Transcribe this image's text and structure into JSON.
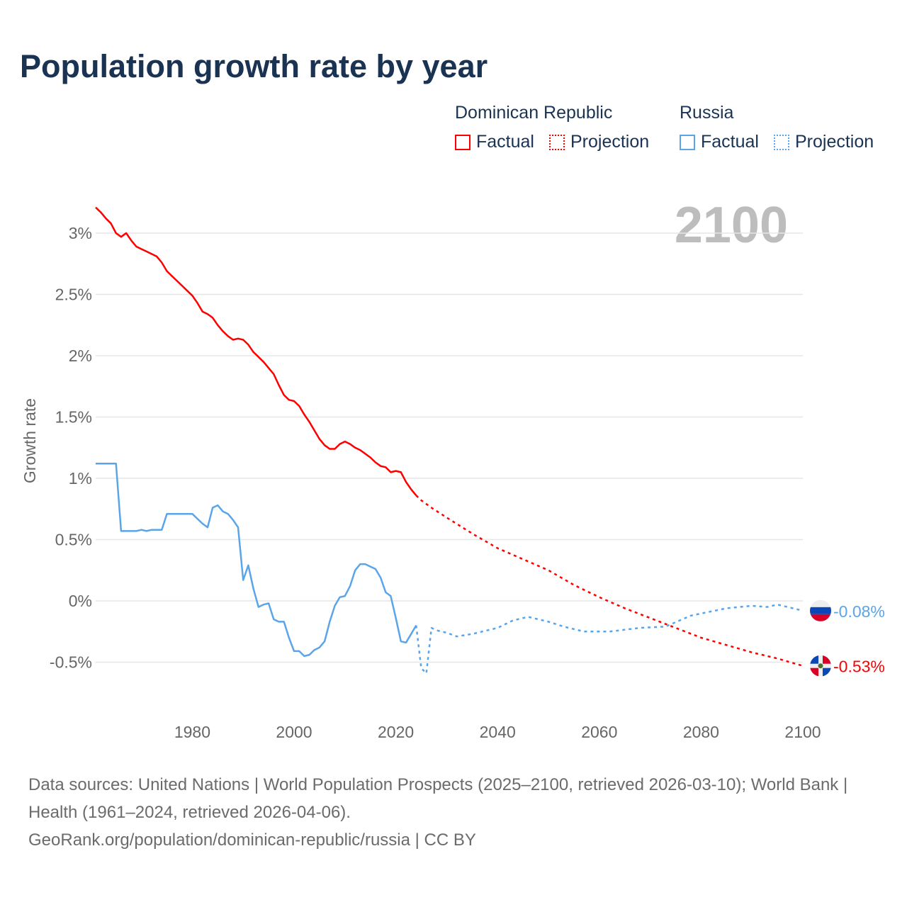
{
  "title": "Population growth rate by year",
  "legend": {
    "groups": [
      {
        "name": "Dominican Republic",
        "factual": "Factual",
        "projection": "Projection"
      },
      {
        "name": "Russia",
        "factual": "Factual",
        "projection": "Projection"
      }
    ]
  },
  "year_overlay": "2100",
  "footer": {
    "sources": "Data sources: United Nations | World Population Prospects (2025–2100, retrieved 2026-03-10); World Bank | Health (1961–2024, retrieved 2026-04-06).",
    "link": "GeoRank.org/population/dominican-republic/russia | CC BY"
  },
  "colors": {
    "dominican": "#ff0000",
    "russia": "#5aa5ea",
    "title": "#1a3353"
  },
  "chart_data": {
    "type": "line",
    "title": "Population growth rate by year",
    "xlabel": "",
    "ylabel": "Growth rate",
    "xlim": [
      1961,
      2100
    ],
    "ylim": [
      -0.75,
      3.25
    ],
    "x_ticks": [
      1980,
      2000,
      2020,
      2040,
      2060,
      2080,
      2100
    ],
    "x_tick_labels": [
      "1980",
      "2000",
      "2020",
      "2040",
      "2060",
      "2080",
      "2100"
    ],
    "y_ticks": [
      -0.5,
      0,
      0.5,
      1,
      1.5,
      2,
      2.5,
      3
    ],
    "y_tick_labels": [
      "-0.5%",
      "0%",
      "0.5%",
      "1%",
      "1.5%",
      "2%",
      "2.5%",
      "3%"
    ],
    "grid": true,
    "legend_position": "top-right",
    "series": [
      {
        "name": "Dominican Republic",
        "kind": "factual",
        "color": "#ff0000",
        "x": [
          1961,
          1962,
          1963,
          1964,
          1965,
          1966,
          1967,
          1968,
          1969,
          1970,
          1971,
          1972,
          1973,
          1974,
          1975,
          1976,
          1977,
          1978,
          1979,
          1980,
          1981,
          1982,
          1983,
          1984,
          1985,
          1986,
          1987,
          1988,
          1989,
          1990,
          1991,
          1992,
          1993,
          1994,
          1995,
          1996,
          1997,
          1998,
          1999,
          2000,
          2001,
          2002,
          2003,
          2004,
          2005,
          2006,
          2007,
          2008,
          2009,
          2010,
          2011,
          2012,
          2013,
          2014,
          2015,
          2016,
          2017,
          2018,
          2019,
          2020,
          2021,
          2022,
          2023,
          2024
        ],
        "values": [
          3.21,
          3.17,
          3.12,
          3.08,
          3.0,
          2.97,
          3.0,
          2.94,
          2.89,
          2.87,
          2.85,
          2.83,
          2.81,
          2.76,
          2.69,
          2.65,
          2.61,
          2.57,
          2.53,
          2.49,
          2.43,
          2.36,
          2.34,
          2.31,
          2.25,
          2.2,
          2.16,
          2.13,
          2.14,
          2.13,
          2.09,
          2.03,
          1.99,
          1.95,
          1.9,
          1.85,
          1.76,
          1.68,
          1.64,
          1.63,
          1.59,
          1.52,
          1.46,
          1.39,
          1.32,
          1.27,
          1.24,
          1.24,
          1.28,
          1.3,
          1.28,
          1.25,
          1.23,
          1.2,
          1.17,
          1.13,
          1.1,
          1.09,
          1.05,
          1.06,
          1.05,
          0.97,
          0.91,
          0.86
        ]
      },
      {
        "name": "Dominican Republic",
        "kind": "projection",
        "color": "#ff0000",
        "x": [
          2024,
          2025,
          2027,
          2030,
          2035,
          2040,
          2045,
          2050,
          2055,
          2060,
          2065,
          2070,
          2075,
          2080,
          2085,
          2090,
          2095,
          2100
        ],
        "values": [
          0.86,
          0.82,
          0.76,
          0.68,
          0.55,
          0.43,
          0.34,
          0.25,
          0.13,
          0.03,
          -0.06,
          -0.14,
          -0.22,
          -0.3,
          -0.36,
          -0.42,
          -0.47,
          -0.53
        ]
      },
      {
        "name": "Russia",
        "kind": "factual",
        "color": "#5aa5ea",
        "x": [
          1961,
          1962,
          1963,
          1964,
          1965,
          1966,
          1967,
          1968,
          1969,
          1970,
          1971,
          1972,
          1973,
          1974,
          1975,
          1976,
          1977,
          1978,
          1979,
          1980,
          1981,
          1982,
          1983,
          1984,
          1985,
          1986,
          1987,
          1988,
          1989,
          1990,
          1991,
          1992,
          1993,
          1994,
          1995,
          1996,
          1997,
          1998,
          1999,
          2000,
          2001,
          2002,
          2003,
          2004,
          2005,
          2006,
          2007,
          2008,
          2009,
          2010,
          2011,
          2012,
          2013,
          2014,
          2015,
          2016,
          2017,
          2018,
          2019,
          2020,
          2021,
          2022,
          2023,
          2024
        ],
        "values": [
          1.12,
          1.12,
          1.12,
          1.12,
          1.12,
          0.57,
          0.57,
          0.57,
          0.57,
          0.58,
          0.57,
          0.58,
          0.58,
          0.58,
          0.71,
          0.71,
          0.71,
          0.71,
          0.71,
          0.71,
          0.67,
          0.63,
          0.6,
          0.76,
          0.78,
          0.73,
          0.71,
          0.66,
          0.6,
          0.17,
          0.29,
          0.1,
          -0.05,
          -0.03,
          -0.02,
          -0.15,
          -0.17,
          -0.17,
          -0.3,
          -0.41,
          -0.41,
          -0.45,
          -0.44,
          -0.4,
          -0.38,
          -0.33,
          -0.17,
          -0.04,
          0.03,
          0.04,
          0.12,
          0.25,
          0.3,
          0.3,
          0.28,
          0.26,
          0.19,
          0.07,
          0.04,
          -0.14,
          -0.33,
          -0.34,
          -0.27,
          -0.2
        ]
      },
      {
        "name": "Russia",
        "kind": "projection",
        "color": "#5aa5ea",
        "x": [
          2024,
          2025,
          2026,
          2027,
          2028,
          2030,
          2032,
          2035,
          2040,
          2043,
          2046,
          2050,
          2053,
          2057,
          2062,
          2068,
          2073,
          2078,
          2085,
          2090,
          2093,
          2095,
          2100
        ],
        "values": [
          -0.2,
          -0.55,
          -0.59,
          -0.22,
          -0.24,
          -0.26,
          -0.29,
          -0.27,
          -0.22,
          -0.16,
          -0.13,
          -0.17,
          -0.21,
          -0.25,
          -0.25,
          -0.22,
          -0.21,
          -0.12,
          -0.06,
          -0.04,
          -0.05,
          -0.03,
          -0.08
        ]
      }
    ],
    "end_labels": [
      {
        "series": "Russia",
        "text": "-0.08%",
        "value": -0.08
      },
      {
        "series": "Dominican Republic",
        "text": "-0.53%",
        "value": -0.53
      }
    ]
  }
}
